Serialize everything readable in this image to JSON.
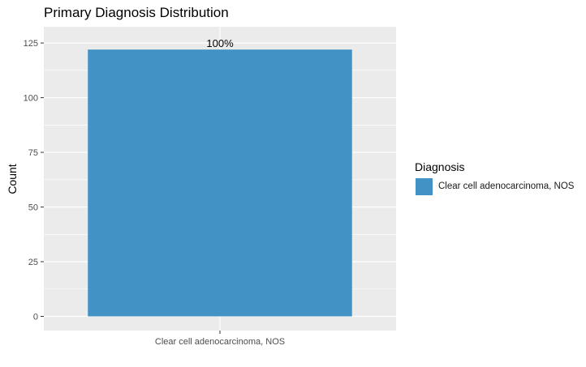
{
  "chart_data": {
    "type": "bar",
    "title": "Primary Diagnosis Distribution",
    "xlabel": "",
    "ylabel": "Count",
    "categories": [
      "Clear cell adenocarcinoma, NOS"
    ],
    "values": [
      122
    ],
    "data_labels": [
      "100%"
    ],
    "ylim": [
      0,
      128
    ],
    "yticks": [
      0,
      25,
      50,
      75,
      100,
      125
    ],
    "grid": true,
    "legend": {
      "title": "Diagnosis",
      "position": "right",
      "entries": [
        {
          "label": "Clear cell adenocarcinoma, NOS",
          "color": "#4292c6"
        }
      ]
    },
    "colors": {
      "bar": "#4292c6",
      "panel_background": "#ebebeb",
      "grid": "#ffffff"
    }
  }
}
